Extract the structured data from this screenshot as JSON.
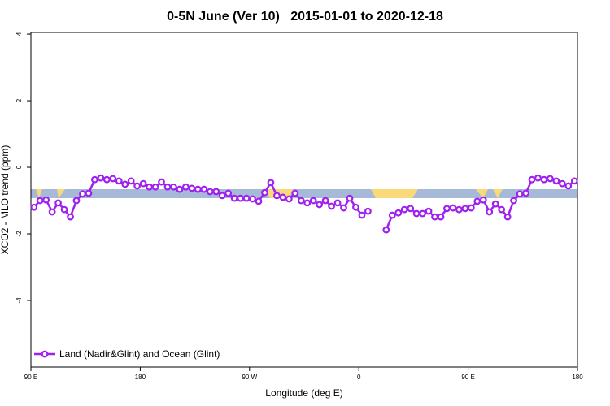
{
  "chart_data": {
    "type": "line",
    "title": "0-5N June (Ver 10)   2015-01-01 to 2020-12-18",
    "x_label": "Longitude (deg E)",
    "y_label": "XCO2 - MLO trend (ppm)",
    "xlim": [
      90,
      540
    ],
    "ylim": [
      -6,
      4.05
    ],
    "xticks": [
      {
        "value": 90,
        "label": "90 E"
      },
      180,
      {
        "value": 270,
        "label": "90 W"
      },
      {
        "value": 360,
        "label": "0"
      },
      {
        "value": 450,
        "label": "90 E"
      },
      {
        "value": 540,
        "label": "180"
      }
    ],
    "yticks": [
      4,
      2,
      0,
      -2,
      -4
    ],
    "legend": "bottom-left",
    "x": [
      92.5,
      97.5,
      102.5,
      107.5,
      112.5,
      117.5,
      122.5,
      127.5,
      132.5,
      137.5,
      142.5,
      147.5,
      152.5,
      157.5,
      162.5,
      167.5,
      172.5,
      177.5,
      182.5,
      187.5,
      192.5,
      197.5,
      202.5,
      207.5,
      212.5,
      217.5,
      222.5,
      227.5,
      232.5,
      237.5,
      242.5,
      247.5,
      252.5,
      257.5,
      262.5,
      267.5,
      272.5,
      277.5,
      282.5,
      287.5,
      292.5,
      297.5,
      302.5,
      307.5,
      312.5,
      317.5,
      322.5,
      327.5,
      332.5,
      337.5,
      342.5,
      347.5,
      352.5,
      357.5,
      362.5,
      367.5,
      372.5,
      377.5,
      382.5,
      387.5,
      392.5,
      397.5,
      402.5,
      407.5,
      412.5,
      417.5,
      422.5,
      427.5,
      432.5,
      437.5,
      442.5,
      447.5,
      452.5,
      457.5,
      462.5,
      467.5,
      472.5,
      477.5,
      482.5,
      487.5,
      492.5,
      497.5,
      502.5,
      507.5,
      512.5,
      517.5,
      522.5,
      527.5,
      532.5,
      537.5
    ],
    "series": [
      {
        "name": "Land (Nadir&Glint) and Ocean (Glint)",
        "color": "#a020f0",
        "values": [
          -1.2,
          -1.0,
          -0.98,
          -1.34,
          -1.07,
          -1.27,
          -1.49,
          -1.0,
          -0.8,
          -0.78,
          -0.37,
          -0.32,
          -0.37,
          -0.34,
          -0.41,
          -0.51,
          -0.41,
          -0.56,
          -0.49,
          -0.59,
          -0.59,
          -0.44,
          -0.59,
          -0.59,
          -0.66,
          -0.59,
          -0.63,
          -0.66,
          -0.66,
          -0.73,
          -0.73,
          -0.85,
          -0.78,
          -0.93,
          -0.93,
          -0.93,
          -0.95,
          -1.02,
          -0.76,
          -0.46,
          -0.85,
          -0.9,
          -0.95,
          -0.78,
          -1.0,
          -1.07,
          -1.0,
          -1.12,
          -1.0,
          -1.17,
          -1.07,
          -1.22,
          -0.93,
          -1.2,
          -1.44,
          -1.32,
          null,
          null,
          -1.88,
          -1.44,
          -1.37,
          -1.27,
          -1.24,
          -1.39,
          -1.39,
          -1.32,
          -1.49,
          -1.49,
          -1.24,
          -1.22,
          -1.27,
          -1.24,
          -1.22,
          -1.02,
          -0.98,
          -1.34,
          -1.1,
          -1.27,
          -1.49,
          -1.0,
          -0.8,
          -0.78,
          -0.37,
          -0.32,
          -0.37,
          -0.34,
          -0.41,
          -0.49,
          -0.56,
          -0.41
        ]
      }
    ]
  }
}
